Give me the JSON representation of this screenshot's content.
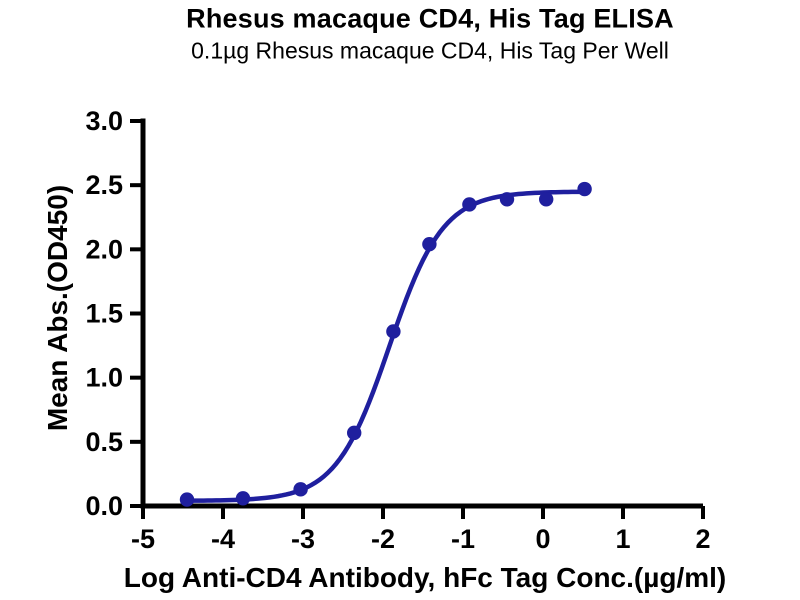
{
  "chart_data": {
    "type": "line",
    "title": "Rhesus macaque CD4, His Tag ELISA",
    "subtitle": "0.1µg Rhesus macaque CD4, His Tag Per Well",
    "xlabel": "Log Anti-CD4 Antibody, hFc Tag Conc.(µg/ml)",
    "ylabel": "Mean Abs.(OD450)",
    "xlim": [
      -5,
      2
    ],
    "ylim": [
      0,
      3
    ],
    "grid": false,
    "legend_position": "none",
    "axis_color": "#000000",
    "background_color": "#ffffff",
    "xticks": [
      {
        "v": -5,
        "label": "-5"
      },
      {
        "v": -4,
        "label": "-4"
      },
      {
        "v": -3,
        "label": "-3"
      },
      {
        "v": -2,
        "label": "-2"
      },
      {
        "v": -1,
        "label": "-1"
      },
      {
        "v": 0,
        "label": "0"
      },
      {
        "v": 1,
        "label": "1"
      },
      {
        "v": 2,
        "label": "2"
      }
    ],
    "yticks": [
      {
        "v": 0.0,
        "label": "0.0"
      },
      {
        "v": 0.5,
        "label": "0.5"
      },
      {
        "v": 1.0,
        "label": "1.0"
      },
      {
        "v": 1.5,
        "label": "1.5"
      },
      {
        "v": 2.0,
        "label": "2.0"
      },
      {
        "v": 2.5,
        "label": "2.5"
      },
      {
        "v": 3.0,
        "label": "3.0"
      }
    ],
    "series": [
      {
        "color": "#1f1f9e",
        "marker": "circle",
        "points": [
          {
            "x": -4.45,
            "y": 0.05
          },
          {
            "x": -3.75,
            "y": 0.06
          },
          {
            "x": -3.03,
            "y": 0.13
          },
          {
            "x": -2.36,
            "y": 0.57
          },
          {
            "x": -1.87,
            "y": 1.36
          },
          {
            "x": -1.42,
            "y": 2.04
          },
          {
            "x": -0.92,
            "y": 2.35
          },
          {
            "x": -0.45,
            "y": 2.39
          },
          {
            "x": 0.04,
            "y": 2.39
          },
          {
            "x": 0.52,
            "y": 2.47
          }
        ],
        "fit_curve": {
          "model": "4PL-sigmoid",
          "bottom": 0.04,
          "top": 2.45,
          "logEC50": -1.92,
          "hillslope": 1.3
        }
      }
    ]
  }
}
